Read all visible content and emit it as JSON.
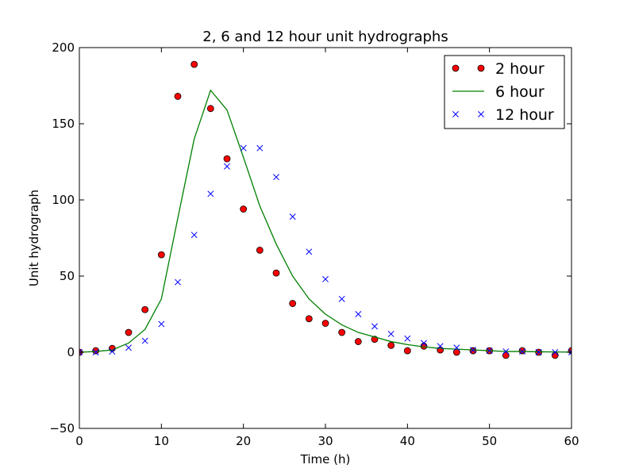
{
  "chart_data": {
    "type": "line",
    "title": "2, 6 and 12 hour unit hydrographs",
    "xlabel": "Time (h)",
    "ylabel": "Unit hydrograph",
    "xlim": [
      0,
      60
    ],
    "ylim": [
      -50,
      200
    ],
    "xticks": [
      0,
      10,
      20,
      30,
      40,
      50,
      60
    ],
    "yticks": [
      -50,
      0,
      50,
      100,
      150,
      200
    ],
    "grid": false,
    "legend_position": "top-right",
    "colors": {
      "red": "#ff0000",
      "green": "#008000",
      "blue": "#0000ff"
    },
    "series": [
      {
        "name": "2 hour",
        "style": "markers-circle",
        "x": [
          0,
          2,
          4,
          6,
          8,
          10,
          12,
          14,
          16,
          18,
          20,
          22,
          24,
          26,
          28,
          30,
          32,
          34,
          36,
          38,
          40,
          42,
          44,
          46,
          48,
          50,
          52,
          54,
          56,
          58,
          60
        ],
        "y": [
          0,
          1,
          2.5,
          13,
          28,
          64,
          168,
          189,
          160,
          127,
          94,
          67,
          52,
          32,
          22,
          19,
          13,
          7,
          8.5,
          4.5,
          1,
          4,
          1.5,
          0,
          1,
          1,
          -2,
          1,
          0,
          -2,
          1
        ]
      },
      {
        "name": "6 hour",
        "style": "line",
        "x": [
          0,
          2,
          4,
          6,
          8,
          10,
          12,
          14,
          16,
          18,
          20,
          22,
          24,
          26,
          28,
          30,
          32,
          34,
          36,
          38,
          40,
          42,
          44,
          46,
          48,
          50,
          52,
          54,
          56,
          58,
          60
        ],
        "y": [
          0,
          0.5,
          1.5,
          6,
          15,
          35,
          88,
          140,
          172,
          159,
          128,
          96,
          71,
          50,
          35,
          25,
          18,
          13,
          10,
          7,
          5,
          3.5,
          2.5,
          2,
          1.5,
          1,
          0.5,
          0.5,
          0.3,
          0.2,
          0.1
        ]
      },
      {
        "name": "12 hour",
        "style": "markers-x",
        "x": [
          0,
          2,
          4,
          6,
          8,
          10,
          12,
          14,
          16,
          18,
          20,
          22,
          24,
          26,
          28,
          30,
          32,
          34,
          36,
          38,
          40,
          42,
          44,
          46,
          48,
          50,
          52,
          54,
          56,
          58,
          60
        ],
        "y": [
          0,
          0,
          0.5,
          3,
          7.5,
          18.5,
          46,
          77,
          104,
          122,
          134,
          134,
          115,
          89,
          66,
          48,
          35,
          25,
          17,
          12,
          9,
          6,
          4,
          3,
          1.5,
          1,
          0.5,
          0.5,
          0,
          0,
          0
        ]
      }
    ]
  }
}
